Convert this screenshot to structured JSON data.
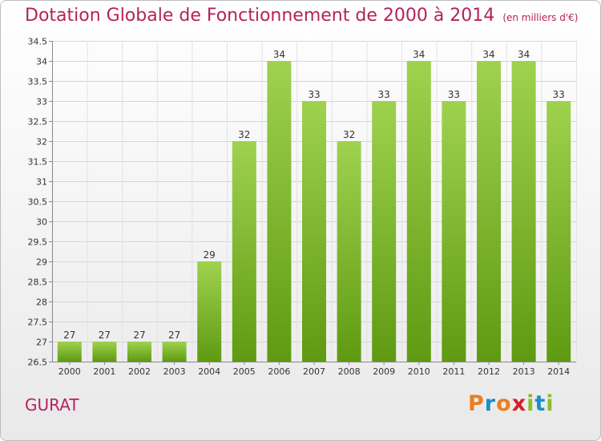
{
  "header": {
    "title": "Dotation Globale de Fonctionnement de 2000 à 2014",
    "subtitle": "(en milliers d'€)"
  },
  "footer": {
    "commune": "GURAT",
    "logo_text": "Proxiti"
  },
  "colors": {
    "title": "#b5225e",
    "bar_top": "#9fd24f",
    "bar_bottom": "#5f9a12",
    "logo_letters": [
      "#ee7d22",
      "#1a8ec9",
      "#ee7d22",
      "#d3202a",
      "#8cbd2c",
      "#1a8ec9",
      "#8cbd2c"
    ]
  },
  "chart_data": {
    "type": "bar",
    "categories": [
      "2000",
      "2001",
      "2002",
      "2003",
      "2004",
      "2005",
      "2006",
      "2007",
      "2008",
      "2009",
      "2010",
      "2011",
      "2012",
      "2013",
      "2014"
    ],
    "values": [
      27,
      27,
      27,
      27,
      29,
      32,
      34,
      33,
      32,
      33,
      34,
      33,
      34,
      34,
      33
    ],
    "ylim": [
      26.5,
      34.5
    ],
    "yticks": [
      26.5,
      27,
      27.5,
      28,
      28.5,
      29,
      29.5,
      30,
      30.5,
      31,
      31.5,
      32,
      32.5,
      33,
      33.5,
      34,
      34.5
    ],
    "ytick_labels": [
      "26.5",
      "27",
      "27.5",
      "28",
      "28.5",
      "29",
      "29.5",
      "30",
      "30.5",
      "31",
      "31.5",
      "32",
      "32.5",
      "33",
      "33.5",
      "34",
      "34.5"
    ],
    "grid": true,
    "data_labels": true
  }
}
